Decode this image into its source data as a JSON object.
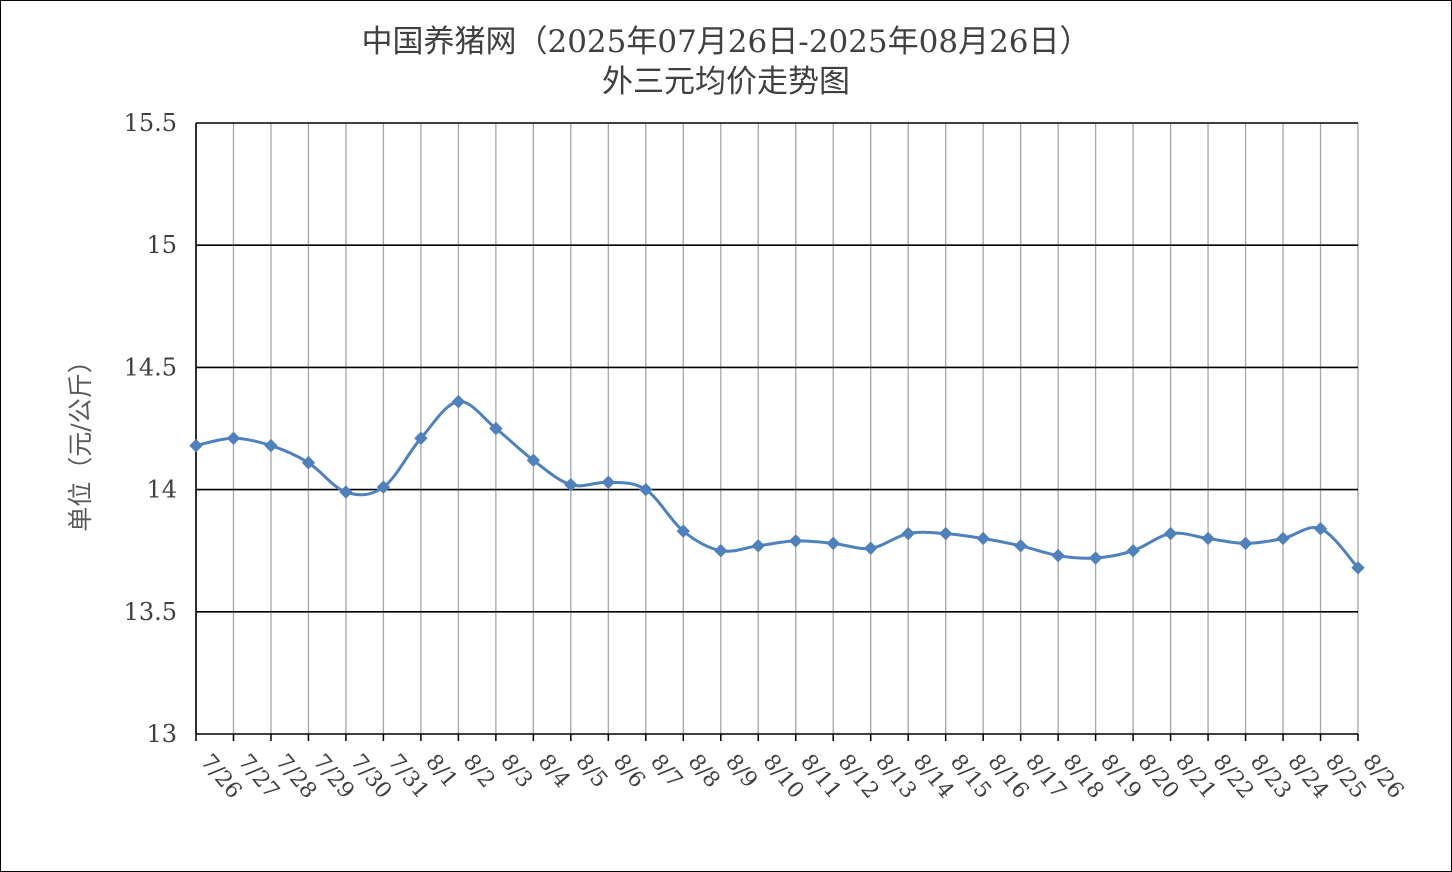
{
  "chart_data": {
    "type": "line",
    "title": "中国养猪网（2025年07月26日-2025年08月26日）",
    "subtitle": "外三元均价走势图",
    "ylabel": "单位（元/公斤）",
    "xlabel": "",
    "ylim": [
      13,
      15.5
    ],
    "yticks": [
      "15.5",
      "15",
      "14.5",
      "14",
      "13.5",
      "13"
    ],
    "categories": [
      "7/26",
      "7/27",
      "7/28",
      "7/29",
      "7/30",
      "7/31",
      "8/1",
      "8/2",
      "8/3",
      "8/4",
      "8/5",
      "8/6",
      "8/7",
      "8/8",
      "8/9",
      "8/10",
      "8/11",
      "8/12",
      "8/13",
      "8/14",
      "8/15",
      "8/16",
      "8/17",
      "8/18",
      "8/19",
      "8/20",
      "8/21",
      "8/22",
      "8/23",
      "8/24",
      "8/25",
      "8/26"
    ],
    "series": [
      {
        "values": [
          14.18,
          14.21,
          14.18,
          14.11,
          13.99,
          14.01,
          14.21,
          14.36,
          14.25,
          14.12,
          14.02,
          14.03,
          14.0,
          13.83,
          13.75,
          13.77,
          13.79,
          13.78,
          13.76,
          13.82,
          13.82,
          13.8,
          13.77,
          13.73,
          13.72,
          13.75,
          13.82,
          13.8,
          13.78,
          13.8,
          13.84,
          13.68
        ],
        "color": "#4f81bd"
      }
    ],
    "grid": true,
    "legend": "none"
  }
}
